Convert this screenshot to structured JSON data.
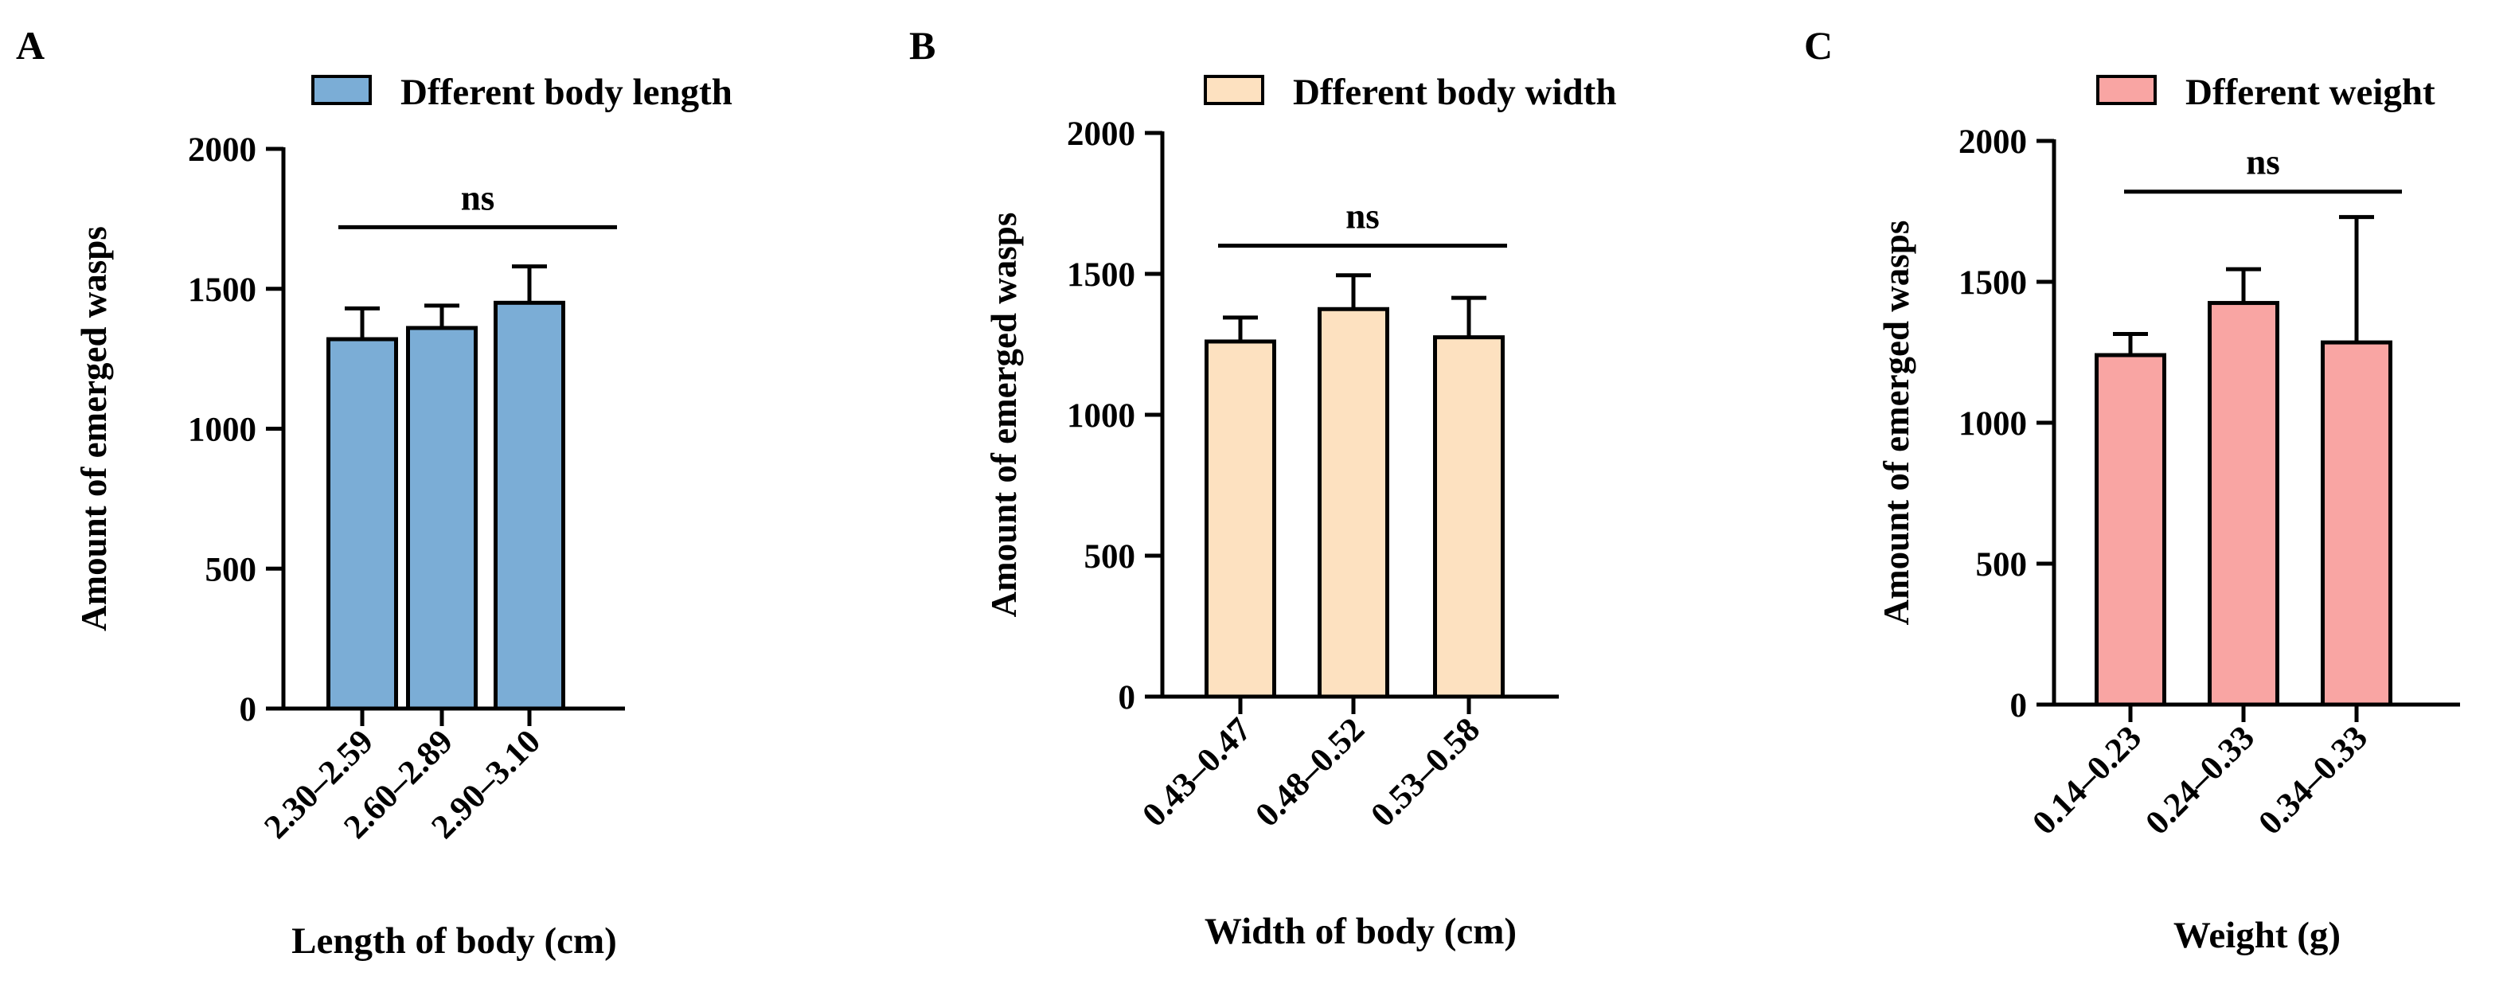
{
  "chart_data": [
    {
      "panel_label": "A",
      "type": "bar",
      "categories": [
        "2.30–2.59",
        "2.60–2.89",
        "2.90–3.10"
      ],
      "series": [
        {
          "name": "Dfferent body length",
          "values": [
            1320,
            1360,
            1450
          ],
          "errors": [
            110,
            80,
            130
          ]
        }
      ],
      "title": "",
      "xlabel": "Length of body (cm)",
      "ylabel": "Amount of emerged wasps",
      "ylim": [
        0,
        2000
      ],
      "yticks": [
        0,
        500,
        1000,
        1500,
        2000
      ],
      "ytick_labels": [
        "0",
        "500",
        "1000",
        "1500",
        "2000"
      ],
      "annotation": "ns",
      "annotation_level": 1720,
      "color": "#7badd6"
    },
    {
      "panel_label": "B",
      "type": "bar",
      "categories": [
        "0.43–0.47",
        "0.48–0.52",
        "0.53–0.58"
      ],
      "series": [
        {
          "name": "Dfferent body width",
          "values": [
            1260,
            1375,
            1275
          ],
          "errors": [
            85,
            120,
            140
          ]
        }
      ],
      "title": "",
      "xlabel": "Width of body (cm)",
      "ylabel": "Amount of emerged wasps",
      "ylim": [
        0,
        2000
      ],
      "yticks": [
        0,
        500,
        1000,
        1500,
        2000
      ],
      "ytick_labels": [
        "0",
        "500",
        "1000",
        "1500",
        "2000"
      ],
      "annotation": "ns",
      "annotation_level": 1600,
      "color": "#fde1c0"
    },
    {
      "panel_label": "C",
      "type": "bar",
      "categories": [
        "0.14–0.23",
        "0.24–0.33",
        "0.34–0.33"
      ],
      "series": [
        {
          "name": "Dfferent weight",
          "values": [
            1240,
            1425,
            1285
          ],
          "errors": [
            75,
            120,
            445
          ]
        }
      ],
      "title": "",
      "xlabel": "Weight (g)",
      "ylabel": "Amount of emerged wasps",
      "ylim": [
        0,
        2000
      ],
      "yticks": [
        0,
        500,
        1000,
        1500,
        2000
      ],
      "ytick_labels": [
        "0",
        "500",
        "1000",
        "1500",
        "2000"
      ],
      "annotation": "ns",
      "annotation_level": 1820,
      "color": "#f9a5a3"
    }
  ]
}
